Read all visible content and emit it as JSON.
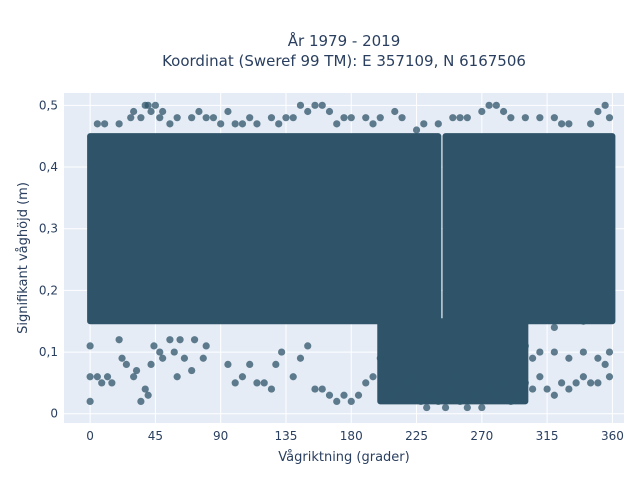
{
  "chart_data": {
    "type": "scatter",
    "title": "År 1979 - 2019",
    "subtitle": "Koordinat (Sweref 99 TM): E 357109, N 6167506",
    "xlabel": "Vågriktning (grader)",
    "ylabel": "Signifikant våghöjd (m)",
    "xlim": [
      -18,
      368
    ],
    "ylim": [
      -0.015,
      0.52
    ],
    "x_ticks": [
      0,
      45,
      90,
      135,
      180,
      225,
      270,
      315,
      360
    ],
    "x_tick_labels": [
      "0",
      "45",
      "90",
      "135",
      "180",
      "225",
      "270",
      "315",
      "360"
    ],
    "y_ticks": [
      0,
      0.1,
      0.2,
      0.3,
      0.4,
      0.5
    ],
    "y_tick_labels": [
      "0",
      "0,1",
      "0,2",
      "0,3",
      "0,4",
      "0,5"
    ],
    "grid": true,
    "legend": "none",
    "marker_color": "#2f5469",
    "plot_background": "#e5ecf6",
    "dense_regions": [
      {
        "x_range": [
          0,
          240
        ],
        "y_range": [
          0.15,
          0.45
        ]
      },
      {
        "x_range": [
          245,
          360
        ],
        "y_range": [
          0.15,
          0.45
        ]
      },
      {
        "x_range": [
          200,
          300
        ],
        "y_range": [
          0.02,
          0.15
        ]
      }
    ],
    "series": [
      {
        "points": [
          [
            0,
            0.02
          ],
          [
            0,
            0.06
          ],
          [
            0,
            0.11
          ],
          [
            5,
            0.06
          ],
          [
            8,
            0.05
          ],
          [
            12,
            0.06
          ],
          [
            15,
            0.05
          ],
          [
            20,
            0.12
          ],
          [
            22,
            0.09
          ],
          [
            25,
            0.08
          ],
          [
            30,
            0.06
          ],
          [
            32,
            0.07
          ],
          [
            35,
            0.02
          ],
          [
            38,
            0.04
          ],
          [
            40,
            0.03
          ],
          [
            42,
            0.08
          ],
          [
            44,
            0.11
          ],
          [
            48,
            0.1
          ],
          [
            50,
            0.09
          ],
          [
            55,
            0.12
          ],
          [
            58,
            0.1
          ],
          [
            60,
            0.06
          ],
          [
            62,
            0.12
          ],
          [
            65,
            0.09
          ],
          [
            70,
            0.07
          ],
          [
            72,
            0.12
          ],
          [
            78,
            0.09
          ],
          [
            80,
            0.11
          ],
          [
            95,
            0.08
          ],
          [
            100,
            0.05
          ],
          [
            105,
            0.06
          ],
          [
            110,
            0.08
          ],
          [
            115,
            0.05
          ],
          [
            120,
            0.05
          ],
          [
            125,
            0.04
          ],
          [
            128,
            0.08
          ],
          [
            132,
            0.1
          ],
          [
            140,
            0.06
          ],
          [
            145,
            0.09
          ],
          [
            150,
            0.11
          ],
          [
            155,
            0.04
          ],
          [
            160,
            0.04
          ],
          [
            165,
            0.03
          ],
          [
            170,
            0.02
          ],
          [
            175,
            0.03
          ],
          [
            180,
            0.02
          ],
          [
            185,
            0.03
          ],
          [
            190,
            0.05
          ],
          [
            195,
            0.06
          ],
          [
            200,
            0.09
          ],
          [
            5,
            0.47
          ],
          [
            10,
            0.47
          ],
          [
            20,
            0.47
          ],
          [
            28,
            0.48
          ],
          [
            30,
            0.49
          ],
          [
            35,
            0.48
          ],
          [
            38,
            0.5
          ],
          [
            40,
            0.5
          ],
          [
            42,
            0.49
          ],
          [
            45,
            0.5
          ],
          [
            48,
            0.48
          ],
          [
            50,
            0.49
          ],
          [
            55,
            0.47
          ],
          [
            60,
            0.48
          ],
          [
            70,
            0.48
          ],
          [
            75,
            0.49
          ],
          [
            80,
            0.48
          ],
          [
            85,
            0.48
          ],
          [
            90,
            0.47
          ],
          [
            95,
            0.49
          ],
          [
            100,
            0.47
          ],
          [
            105,
            0.47
          ],
          [
            110,
            0.48
          ],
          [
            115,
            0.47
          ],
          [
            125,
            0.48
          ],
          [
            130,
            0.47
          ],
          [
            135,
            0.48
          ],
          [
            140,
            0.48
          ],
          [
            145,
            0.5
          ],
          [
            150,
            0.49
          ],
          [
            155,
            0.5
          ],
          [
            160,
            0.5
          ],
          [
            165,
            0.49
          ],
          [
            170,
            0.47
          ],
          [
            175,
            0.48
          ],
          [
            180,
            0.48
          ],
          [
            190,
            0.48
          ],
          [
            195,
            0.47
          ],
          [
            200,
            0.48
          ],
          [
            210,
            0.49
          ],
          [
            215,
            0.48
          ],
          [
            225,
            0.46
          ],
          [
            230,
            0.47
          ],
          [
            240,
            0.47
          ],
          [
            250,
            0.48
          ],
          [
            255,
            0.48
          ],
          [
            260,
            0.48
          ],
          [
            270,
            0.49
          ],
          [
            275,
            0.5
          ],
          [
            280,
            0.5
          ],
          [
            285,
            0.49
          ],
          [
            290,
            0.48
          ],
          [
            300,
            0.48
          ],
          [
            310,
            0.48
          ],
          [
            320,
            0.48
          ],
          [
            325,
            0.47
          ],
          [
            330,
            0.47
          ],
          [
            345,
            0.47
          ],
          [
            350,
            0.49
          ],
          [
            355,
            0.5
          ],
          [
            358,
            0.48
          ],
          [
            208,
            0.03
          ],
          [
            212,
            0.04
          ],
          [
            218,
            0.05
          ],
          [
            222,
            0.06
          ],
          [
            225,
            0.04
          ],
          [
            228,
            0.02
          ],
          [
            232,
            0.01
          ],
          [
            235,
            0.03
          ],
          [
            240,
            0.02
          ],
          [
            245,
            0.01
          ],
          [
            248,
            0.04
          ],
          [
            252,
            0.06
          ],
          [
            255,
            0.02
          ],
          [
            260,
            0.01
          ],
          [
            265,
            0.03
          ],
          [
            270,
            0.01
          ],
          [
            275,
            0.04
          ],
          [
            280,
            0.03
          ],
          [
            285,
            0.05
          ],
          [
            290,
            0.02
          ],
          [
            295,
            0.03
          ],
          [
            300,
            0.05
          ],
          [
            305,
            0.04
          ],
          [
            310,
            0.06
          ],
          [
            315,
            0.04
          ],
          [
            320,
            0.03
          ],
          [
            325,
            0.05
          ],
          [
            330,
            0.04
          ],
          [
            335,
            0.05
          ],
          [
            340,
            0.06
          ],
          [
            345,
            0.05
          ],
          [
            350,
            0.05
          ],
          [
            355,
            0.08
          ],
          [
            358,
            0.06
          ],
          [
            300,
            0.11
          ],
          [
            305,
            0.09
          ],
          [
            310,
            0.1
          ],
          [
            320,
            0.1
          ],
          [
            330,
            0.09
          ],
          [
            340,
            0.1
          ],
          [
            350,
            0.09
          ],
          [
            358,
            0.1
          ],
          [
            340,
            0.15
          ],
          [
            320,
            0.14
          ]
        ]
      }
    ]
  }
}
